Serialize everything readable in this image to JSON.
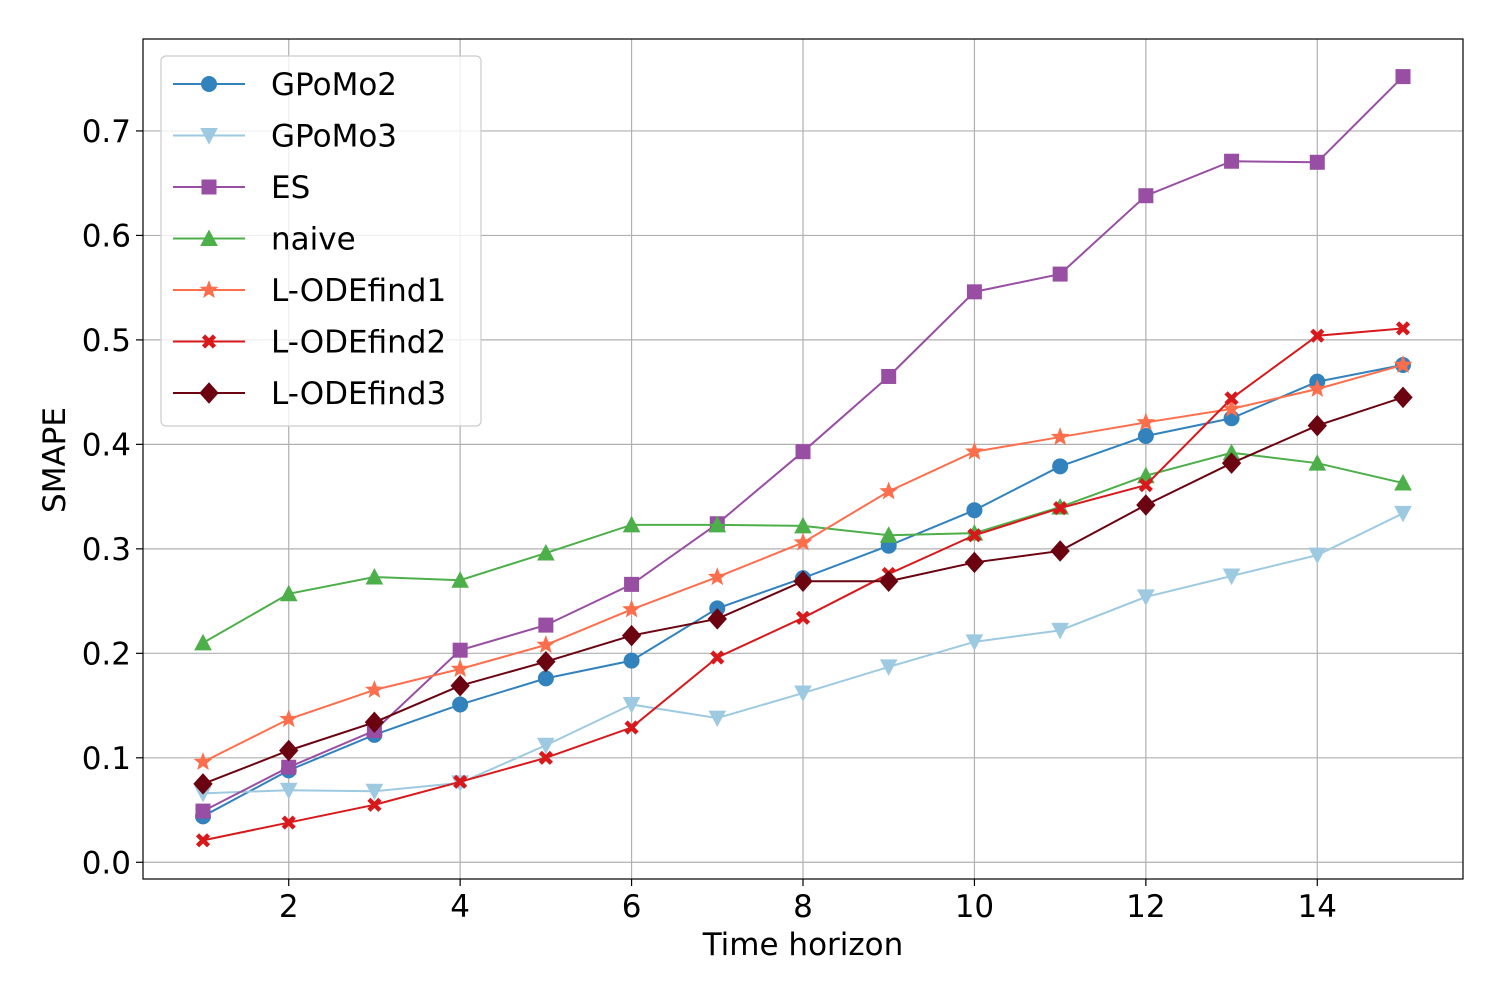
{
  "chart_data": {
    "type": "line",
    "title": "",
    "xlabel": "Time horizon",
    "ylabel": "SMAPE",
    "xlim": [
      0.3,
      15.7
    ],
    "ylim": [
      -0.016,
      0.788
    ],
    "xticks": [
      2,
      4,
      6,
      8,
      10,
      12,
      14
    ],
    "yticks": [
      0.0,
      0.1,
      0.2,
      0.3,
      0.4,
      0.5,
      0.6,
      0.7
    ],
    "grid": true,
    "legend_position": "top-left",
    "x": [
      1,
      2,
      3,
      4,
      5,
      6,
      7,
      8,
      9,
      10,
      11,
      12,
      13,
      14,
      15
    ],
    "series": [
      {
        "name": "GPoMo2",
        "color": "#3182bd",
        "marker": "circle",
        "values": [
          0.044,
          0.088,
          0.122,
          0.151,
          0.176,
          0.193,
          0.243,
          0.272,
          0.303,
          0.337,
          0.379,
          0.408,
          0.425,
          0.46,
          0.476
        ]
      },
      {
        "name": "GPoMo3",
        "color": "#9ecae1",
        "marker": "triangle-down",
        "values": [
          0.066,
          0.069,
          0.068,
          0.076,
          0.112,
          0.151,
          0.138,
          0.162,
          0.187,
          0.211,
          0.222,
          0.254,
          0.274,
          0.294,
          0.334
        ]
      },
      {
        "name": "ES",
        "color": "#984ea3",
        "marker": "square",
        "values": [
          0.049,
          0.091,
          0.126,
          0.203,
          0.227,
          0.266,
          0.324,
          0.393,
          0.465,
          0.546,
          0.563,
          0.638,
          0.671,
          0.67,
          0.752
        ]
      },
      {
        "name": "naive",
        "color": "#4daf4a",
        "marker": "triangle-up",
        "values": [
          0.21,
          0.257,
          0.273,
          0.27,
          0.296,
          0.323,
          0.323,
          0.322,
          0.313,
          0.315,
          0.34,
          0.37,
          0.392,
          0.382,
          0.363
        ]
      },
      {
        "name": "L-ODEfind1",
        "color": "#fc6e4c",
        "marker": "star",
        "values": [
          0.096,
          0.137,
          0.165,
          0.185,
          0.208,
          0.242,
          0.273,
          0.306,
          0.355,
          0.393,
          0.407,
          0.421,
          0.434,
          0.453,
          0.476
        ]
      },
      {
        "name": "L-ODEfind2",
        "color": "#d7191c",
        "marker": "x",
        "values": [
          0.021,
          0.038,
          0.055,
          0.077,
          0.1,
          0.129,
          0.196,
          0.234,
          0.276,
          0.313,
          0.339,
          0.361,
          0.444,
          0.504,
          0.511
        ]
      },
      {
        "name": "L-ODEfind3",
        "color": "#6b0410",
        "marker": "diamond",
        "values": [
          0.075,
          0.107,
          0.134,
          0.169,
          0.192,
          0.217,
          0.233,
          0.269,
          0.269,
          0.287,
          0.298,
          0.342,
          0.382,
          0.418,
          0.445
        ]
      }
    ]
  }
}
